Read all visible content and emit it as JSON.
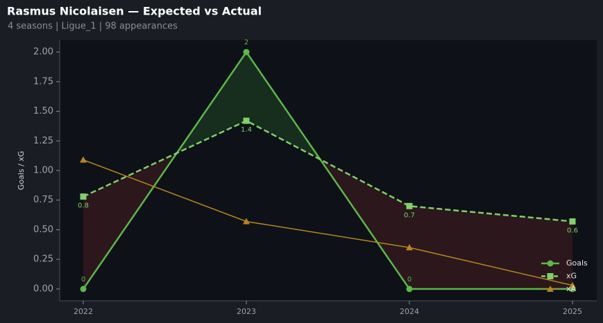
{
  "chart_data": {
    "type": "line",
    "title": "Rasmus Nicolaisen — Expected vs Actual",
    "subtitle": "4 seasons | Ligue_1 | 98 appearances",
    "y_label": "Goals / xG",
    "categories": [
      "2022",
      "2023",
      "2024",
      "2025"
    ],
    "series": [
      {
        "name": "Goals",
        "color": "#5cb84a",
        "marker": "circle",
        "dash": false,
        "width": 2.5,
        "values": [
          0,
          2,
          0,
          0
        ],
        "value_labels": [
          "0",
          "2",
          "0",
          null
        ]
      },
      {
        "name": "xG",
        "color": "#7fd068",
        "marker": "square",
        "dash": true,
        "width": 2.5,
        "values": [
          0.78,
          1.42,
          0.7,
          0.57
        ],
        "value_labels": [
          "0.8",
          "1.4",
          "0.7",
          "0.6"
        ]
      },
      {
        "name": "xA",
        "color": "#b8861e",
        "marker": "triangle",
        "dash": false,
        "width": 1.5,
        "values": [
          1.09,
          0.57,
          0.35,
          0.03
        ]
      }
    ],
    "ylim": [
      -0.1,
      2.1
    ],
    "yticks": [
      {
        "value": 0,
        "label": "0.00"
      },
      {
        "value": 0.25,
        "label": "0.25"
      },
      {
        "value": 0.5,
        "label": "0.50"
      },
      {
        "value": 0.75,
        "label": "0.75"
      },
      {
        "value": 1,
        "label": "1.00"
      },
      {
        "value": 1.25,
        "label": "1.25"
      },
      {
        "value": 1.5,
        "label": "1.50"
      },
      {
        "value": 1.75,
        "label": "1.75"
      },
      {
        "value": 2,
        "label": "2.00"
      }
    ],
    "legend": "lower right",
    "fill_between": {
      "series": [
        0,
        1
      ],
      "above_color": "#3ca03c",
      "below_color": "#a03232"
    }
  }
}
